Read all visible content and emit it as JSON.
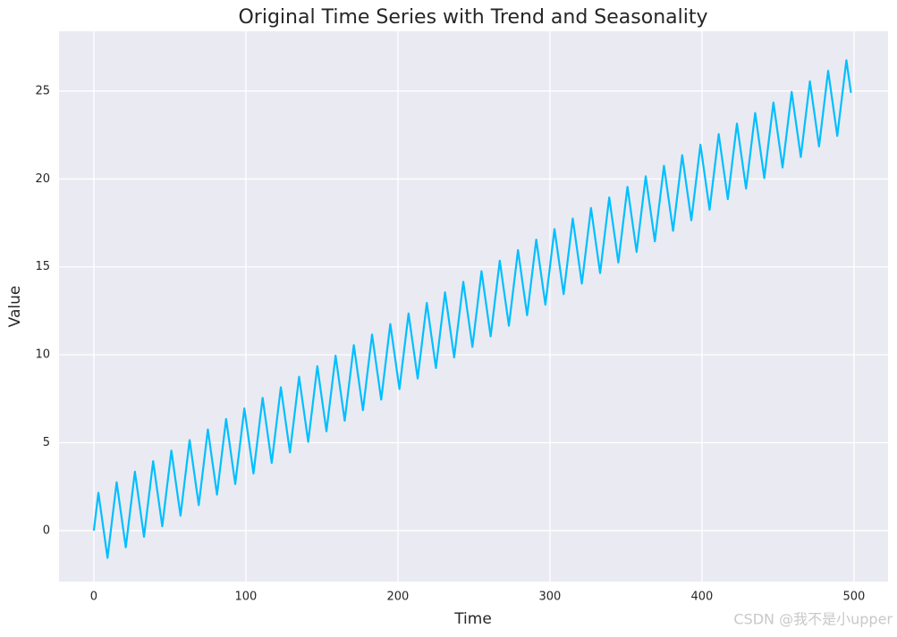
{
  "chart_data": {
    "type": "line",
    "title": "Original Time Series with Trend and Seasonality",
    "x_label": "Time",
    "y_label": "Value",
    "annotation": "CSDN @我不是小upper",
    "x": [
      0,
      3,
      6,
      9,
      12,
      15,
      18,
      21,
      24,
      27,
      30,
      33,
      36,
      39,
      42,
      45,
      48,
      51,
      54,
      57,
      60,
      63,
      66,
      69,
      72,
      75,
      78,
      81,
      84,
      87,
      90,
      93,
      96,
      99,
      102,
      105,
      108,
      111,
      114,
      117,
      120,
      123,
      126,
      129,
      132,
      135,
      138,
      141,
      144,
      147,
      150,
      153,
      156,
      159,
      162,
      165,
      168,
      171,
      174,
      177,
      180,
      183,
      186,
      189,
      192,
      195,
      198,
      201,
      204,
      207,
      210,
      213,
      216,
      219,
      222,
      225,
      228,
      231,
      234,
      237,
      240,
      243,
      246,
      249,
      252,
      255,
      258,
      261,
      264,
      267,
      270,
      273,
      276,
      279,
      282,
      285,
      288,
      291,
      294,
      297,
      300,
      303,
      306,
      309,
      312,
      315,
      318,
      321,
      324,
      327,
      330,
      333,
      336,
      339,
      342,
      345,
      348,
      351,
      354,
      357,
      360,
      363,
      366,
      369,
      372,
      375,
      378,
      381,
      384,
      387,
      390,
      393,
      396,
      399,
      402,
      405,
      408,
      411,
      414,
      417,
      420,
      423,
      426,
      429,
      432,
      435,
      438,
      441,
      444,
      447,
      450,
      453,
      456,
      459,
      462,
      465,
      468,
      471,
      474,
      477,
      480,
      483,
      486,
      489,
      492,
      495,
      498
    ],
    "series": [
      {
        "name": "Value",
        "color": "#00bfff",
        "values": [
          0,
          2.15,
          0.3,
          -1.55,
          0.6,
          2.75,
          0.9,
          -0.95,
          1.2,
          3.35,
          1.5,
          -0.35,
          1.8,
          3.95,
          2.1,
          0.25,
          2.4,
          4.55,
          2.7,
          0.85,
          3.0,
          5.15,
          3.3,
          1.45,
          3.6,
          5.75,
          3.9,
          2.05,
          4.2,
          6.35,
          4.5,
          2.65,
          4.8,
          6.95,
          5.1,
          3.25,
          5.4,
          7.55,
          5.7,
          3.85,
          6.0,
          8.15,
          6.3,
          4.45,
          6.6,
          8.75,
          6.9,
          5.05,
          7.2,
          9.35,
          7.5,
          5.65,
          7.8,
          9.95,
          8.1,
          6.25,
          8.4,
          10.55,
          8.7,
          6.85,
          9.0,
          11.15,
          9.3,
          7.45,
          9.6,
          11.75,
          9.9,
          8.05,
          10.2,
          12.35,
          10.5,
          8.65,
          10.8,
          12.95,
          11.1,
          9.25,
          11.4,
          13.55,
          11.7,
          9.85,
          12.0,
          14.15,
          12.3,
          10.45,
          12.6,
          14.75,
          12.9,
          11.05,
          13.2,
          15.35,
          13.5,
          11.65,
          13.8,
          15.95,
          14.1,
          12.25,
          14.4,
          16.55,
          14.7,
          12.85,
          15.0,
          17.15,
          15.3,
          13.45,
          15.6,
          17.75,
          15.9,
          14.05,
          16.2,
          18.35,
          16.5,
          14.65,
          16.8,
          18.95,
          17.1,
          15.25,
          17.4,
          19.55,
          17.7,
          15.85,
          18.0,
          20.15,
          18.3,
          16.45,
          18.6,
          20.75,
          18.9,
          17.05,
          19.2,
          21.35,
          19.5,
          17.65,
          19.8,
          21.95,
          20.1,
          18.25,
          20.4,
          22.55,
          20.7,
          18.85,
          21.0,
          23.15,
          21.3,
          19.45,
          21.6,
          23.75,
          21.9,
          20.05,
          22.2,
          24.35,
          22.5,
          20.65,
          22.8,
          24.95,
          23.1,
          21.25,
          23.4,
          25.55,
          23.7,
          21.85,
          24.0,
          26.15,
          24.3,
          22.45,
          24.6,
          26.75,
          24.9
        ]
      }
    ],
    "xlim": [
      -22.9,
      522.4
    ],
    "ylim": [
      -2.9,
      28.4
    ],
    "xticks": [
      0,
      100,
      200,
      300,
      400,
      500
    ],
    "yticks": [
      0,
      5,
      10,
      15,
      20,
      25
    ],
    "grid": true
  }
}
